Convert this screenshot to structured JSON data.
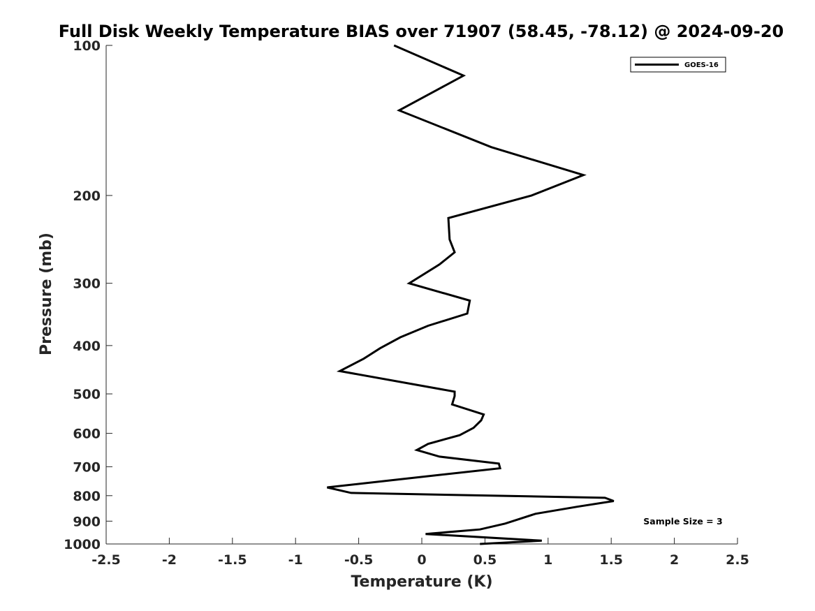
{
  "chart_data": {
    "type": "line",
    "title": "Full Disk Weekly Temperature BIAS over 71907 (58.45, -78.12) @ 2024-09-20",
    "xlabel": "Temperature (K)",
    "ylabel": "Pressure (mb)",
    "xlim": [
      -2.5,
      2.5
    ],
    "ylim": [
      100,
      1000
    ],
    "y_scale": "log",
    "y_reversed": true,
    "grid": false,
    "x_ticks": [
      -2.5,
      -2,
      -1.5,
      -1,
      -0.5,
      0,
      0.5,
      1,
      1.5,
      2,
      2.5
    ],
    "x_tick_labels": [
      "-2.5",
      "-2",
      "-1.5",
      "-1",
      "-0.5",
      "0",
      "0.5",
      "1",
      "1.5",
      "2",
      "2.5"
    ],
    "y_ticks": [
      100,
      200,
      300,
      400,
      500,
      600,
      700,
      800,
      900,
      1000
    ],
    "y_tick_labels": [
      "100",
      "200",
      "300",
      "400",
      "500",
      "600",
      "700",
      "800",
      "900",
      "1000"
    ],
    "legend": {
      "entries": [
        "GOES-16"
      ],
      "placement": "top-right"
    },
    "annotation": "Sample Size = 3",
    "series": [
      {
        "name": "GOES-16",
        "color": "#000000",
        "points": [
          {
            "x": -0.22,
            "p": 100
          },
          {
            "x": 0.33,
            "p": 115
          },
          {
            "x": -0.18,
            "p": 135
          },
          {
            "x": 0.55,
            "p": 160
          },
          {
            "x": 1.28,
            "p": 182
          },
          {
            "x": 0.87,
            "p": 200
          },
          {
            "x": 0.21,
            "p": 222
          },
          {
            "x": 0.22,
            "p": 245
          },
          {
            "x": 0.26,
            "p": 260
          },
          {
            "x": 0.14,
            "p": 275
          },
          {
            "x": -0.1,
            "p": 300
          },
          {
            "x": 0.38,
            "p": 325
          },
          {
            "x": 0.36,
            "p": 345
          },
          {
            "x": 0.05,
            "p": 365
          },
          {
            "x": -0.17,
            "p": 385
          },
          {
            "x": -0.33,
            "p": 405
          },
          {
            "x": -0.46,
            "p": 425
          },
          {
            "x": -0.65,
            "p": 450
          },
          {
            "x": 0.26,
            "p": 495
          },
          {
            "x": 0.26,
            "p": 505
          },
          {
            "x": 0.24,
            "p": 525
          },
          {
            "x": 0.49,
            "p": 550
          },
          {
            "x": 0.47,
            "p": 565
          },
          {
            "x": 0.41,
            "p": 585
          },
          {
            "x": 0.3,
            "p": 605
          },
          {
            "x": 0.05,
            "p": 630
          },
          {
            "x": -0.04,
            "p": 648
          },
          {
            "x": 0.14,
            "p": 668
          },
          {
            "x": 0.61,
            "p": 690
          },
          {
            "x": 0.62,
            "p": 705
          },
          {
            "x": -0.24,
            "p": 745
          },
          {
            "x": -0.75,
            "p": 770
          },
          {
            "x": -0.56,
            "p": 790
          },
          {
            "x": 1.45,
            "p": 808
          },
          {
            "x": 1.52,
            "p": 820
          },
          {
            "x": 1.23,
            "p": 842
          },
          {
            "x": 0.9,
            "p": 870
          },
          {
            "x": 0.75,
            "p": 895
          },
          {
            "x": 0.66,
            "p": 910
          },
          {
            "x": 0.46,
            "p": 935
          },
          {
            "x": 0.03,
            "p": 955
          },
          {
            "x": 0.95,
            "p": 985
          },
          {
            "x": 0.46,
            "p": 1000
          }
        ]
      }
    ]
  }
}
